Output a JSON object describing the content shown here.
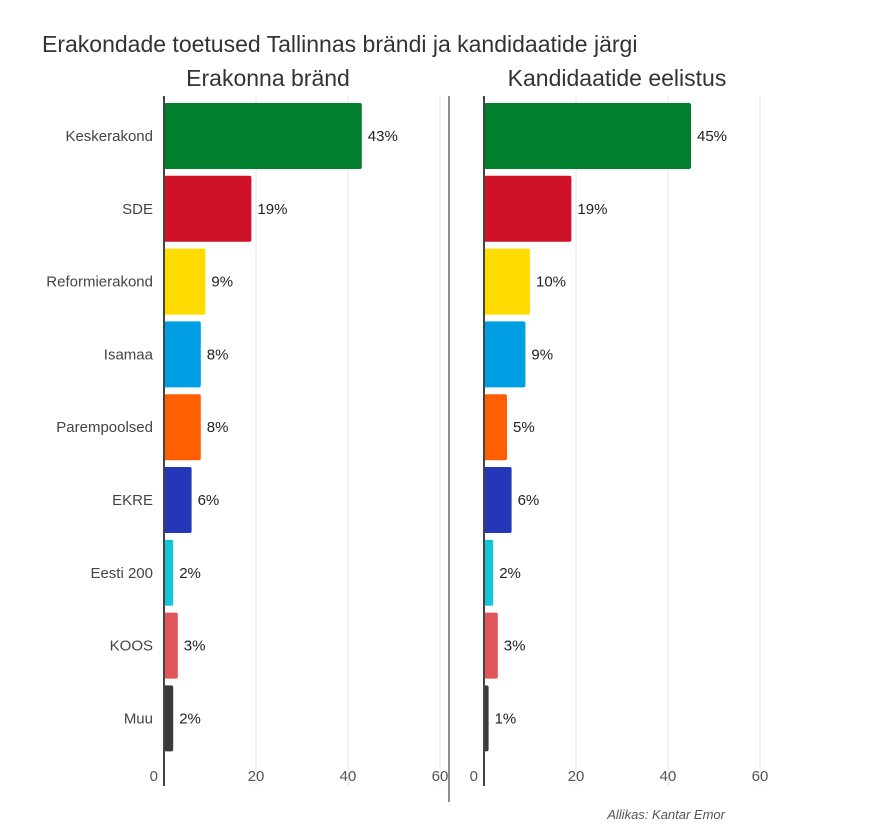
{
  "chart_data": {
    "type": "bar",
    "orientation": "horizontal",
    "title": "Erakondade toetused Tallinnas brändi ja kandidaatide järgi",
    "source": "Allikas: Kantar Emor",
    "categories": [
      "Keskerakond",
      "SDE",
      "Reformierakond",
      "Isamaa",
      "Parempoolsed",
      "EKRE",
      "Eesti 200",
      "KOOS",
      "Muu"
    ],
    "colors": [
      "#007f2d",
      "#cf1127",
      "#ffdc00",
      "#009ee3",
      "#ff5f00",
      "#2536b6",
      "#16c5d5",
      "#e15759",
      "#3a3a3a"
    ],
    "xlim": [
      0,
      60
    ],
    "xticks": [
      0,
      20,
      40,
      60
    ],
    "grid": true,
    "panels": [
      {
        "name": "Erakonna bränd",
        "values": [
          43,
          19,
          9,
          8,
          8,
          6,
          2,
          3,
          2
        ],
        "labels": [
          "43%",
          "19%",
          "9%",
          "8%",
          "8%",
          "6%",
          "2%",
          "3%",
          "2%"
        ]
      },
      {
        "name": "Kandidaatide eelistus",
        "values": [
          45,
          19,
          10,
          9,
          5,
          6,
          2,
          3,
          1
        ],
        "labels": [
          "45%",
          "19%",
          "10%",
          "9%",
          "5%",
          "6%",
          "2%",
          "3%",
          "1%"
        ]
      }
    ]
  }
}
